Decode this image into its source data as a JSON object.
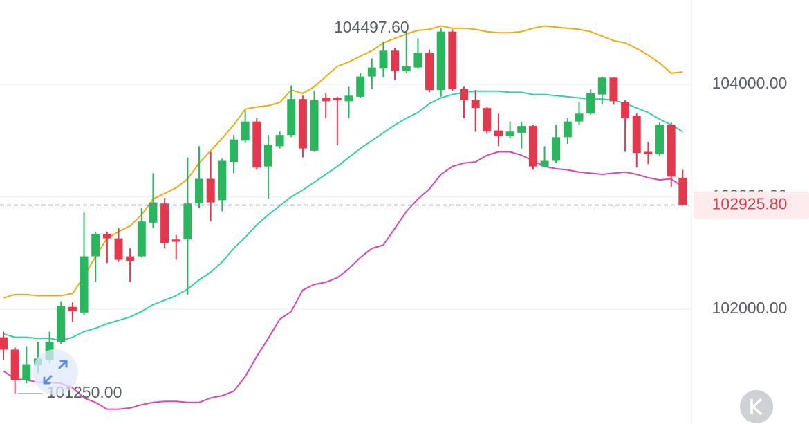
{
  "chart_data": {
    "type": "candlestick",
    "up_color": "#2bb55e",
    "down_color": "#e2394f",
    "open": [
      101750,
      101640,
      101370,
      101500,
      101550,
      101710,
      102020,
      101970,
      102470,
      102670,
      102630,
      102470,
      102470,
      102770,
      102940,
      102620,
      102620,
      102940,
      103160,
      102970,
      103310,
      103500,
      103670,
      103270,
      103450,
      103550,
      103870,
      103410,
      103880,
      103880,
      103850,
      103890,
      104070,
      104140,
      104300,
      104120,
      104150,
      104280,
      103950,
      104470,
      103960,
      103860,
      103790,
      103590,
      103540,
      103570,
      103630,
      103270,
      103320,
      103530,
      103670,
      103740,
      103910,
      104060,
      103840,
      103720,
      103400,
      103380,
      103640,
      103170
    ],
    "high": [
      101800,
      101660,
      101670,
      101710,
      101800,
      102070,
      102060,
      102860,
      102690,
      102690,
      102720,
      102540,
      102900,
      103210,
      102990,
      102660,
      103350,
      103450,
      103400,
      103340,
      103550,
      103770,
      103700,
      103550,
      103580,
      103990,
      103900,
      103940,
      103920,
      103890,
      103980,
      104100,
      104230,
      104380,
      104320,
      104470,
      104410,
      104310,
      104497.6,
      104490,
      103980,
      103950,
      103800,
      103740,
      103670,
      103670,
      103640,
      103450,
      103640,
      103700,
      103840,
      103960,
      104070,
      104060,
      103860,
      103740,
      103490,
      103660,
      103660,
      103240
    ],
    "low": [
      101550,
      101250,
      101340,
      101430,
      101520,
      101690,
      101890,
      101950,
      102240,
      102410,
      102420,
      102240,
      102460,
      102720,
      102540,
      102440,
      102130,
      102900,
      102780,
      102870,
      103210,
      103480,
      103240,
      102980,
      103430,
      103530,
      103350,
      103400,
      103700,
      103460,
      103700,
      103880,
      103960,
      104060,
      104040,
      104100,
      104140,
      103930,
      103890,
      103940,
      103700,
      103580,
      103560,
      103450,
      103520,
      103430,
      103240,
      103260,
      103300,
      103470,
      103640,
      103730,
      103820,
      103820,
      103400,
      103260,
      103290,
      103360,
      103090,
      102920
    ],
    "close": [
      101640,
      101370,
      101510,
      101560,
      101710,
      102030,
      101980,
      102470,
      102670,
      102630,
      102440,
      102430,
      102780,
      102950,
      102590,
      102600,
      102940,
      103160,
      102950,
      103320,
      103510,
      103670,
      103260,
      103460,
      103550,
      103870,
      103430,
      103860,
      103850,
      103860,
      103900,
      104070,
      104150,
      104300,
      104120,
      104160,
      104280,
      103950,
      104470,
      103960,
      103860,
      103790,
      103580,
      103540,
      103580,
      103630,
      103270,
      103320,
      103530,
      103670,
      103740,
      103920,
      104060,
      103850,
      103700,
      103390,
      103380,
      103640,
      103180,
      102925.8
    ],
    "series": [
      {
        "color": "#efac12",
        "values": [
          102100,
          102130,
          102130,
          102120,
          102120,
          102120,
          102140,
          102290,
          102470,
          102630,
          102690,
          102740,
          102840,
          102980,
          103030,
          103080,
          103160,
          103300,
          103410,
          103520,
          103640,
          103780,
          103800,
          103810,
          103840,
          103950,
          103920,
          103980,
          104070,
          104160,
          104200,
          104250,
          104300,
          104370,
          104410,
          104450,
          104480,
          104490,
          104520,
          104500,
          104500,
          104490,
          104470,
          104460,
          104460,
          104470,
          104500,
          104520,
          104510,
          104500,
          104490,
          104470,
          104430,
          104390,
          104370,
          104320,
          104260,
          104190,
          104100,
          104110
        ]
      },
      {
        "color": "#33d0a6",
        "values": [
          101780,
          101750,
          101750,
          101740,
          101740,
          101720,
          101750,
          101800,
          101830,
          101870,
          101900,
          101930,
          101980,
          102040,
          102080,
          102120,
          102180,
          102260,
          102330,
          102420,
          102540,
          102640,
          102750,
          102840,
          102920,
          103000,
          103060,
          103130,
          103200,
          103270,
          103350,
          103430,
          103500,
          103570,
          103640,
          103700,
          103750,
          103830,
          103880,
          103910,
          103930,
          103940,
          103940,
          103940,
          103930,
          103930,
          103910,
          103910,
          103900,
          103890,
          103880,
          103870,
          103870,
          103860,
          103830,
          103790,
          103750,
          103690,
          103640,
          103580
        ]
      },
      {
        "color": "#dd44b4",
        "values": [
          101450,
          101380,
          101370,
          101350,
          101350,
          101340,
          101300,
          101210,
          101170,
          101110,
          101110,
          101120,
          101150,
          101170,
          101180,
          101180,
          101170,
          101170,
          101210,
          101230,
          101270,
          101400,
          101580,
          101740,
          101910,
          101980,
          102170,
          102220,
          102240,
          102280,
          102360,
          102460,
          102540,
          102570,
          102720,
          102870,
          102980,
          103070,
          103200,
          103270,
          103300,
          103310,
          103370,
          103400,
          103400,
          103370,
          103320,
          103270,
          103250,
          103240,
          103220,
          103210,
          103200,
          103210,
          103220,
          103200,
          103170,
          103150,
          103160,
          103090
        ]
      }
    ],
    "ylim": [
      100978,
      104751
    ],
    "yticks": [
      {
        "value": 102000,
        "label": "102000.00"
      },
      {
        "value": 103000,
        "label": "103000.00"
      },
      {
        "value": 104000,
        "label": "104000.00"
      }
    ],
    "grid": true,
    "max_label": "104497.60",
    "min_label": "101250.00",
    "last_price_label": "102925.80"
  }
}
